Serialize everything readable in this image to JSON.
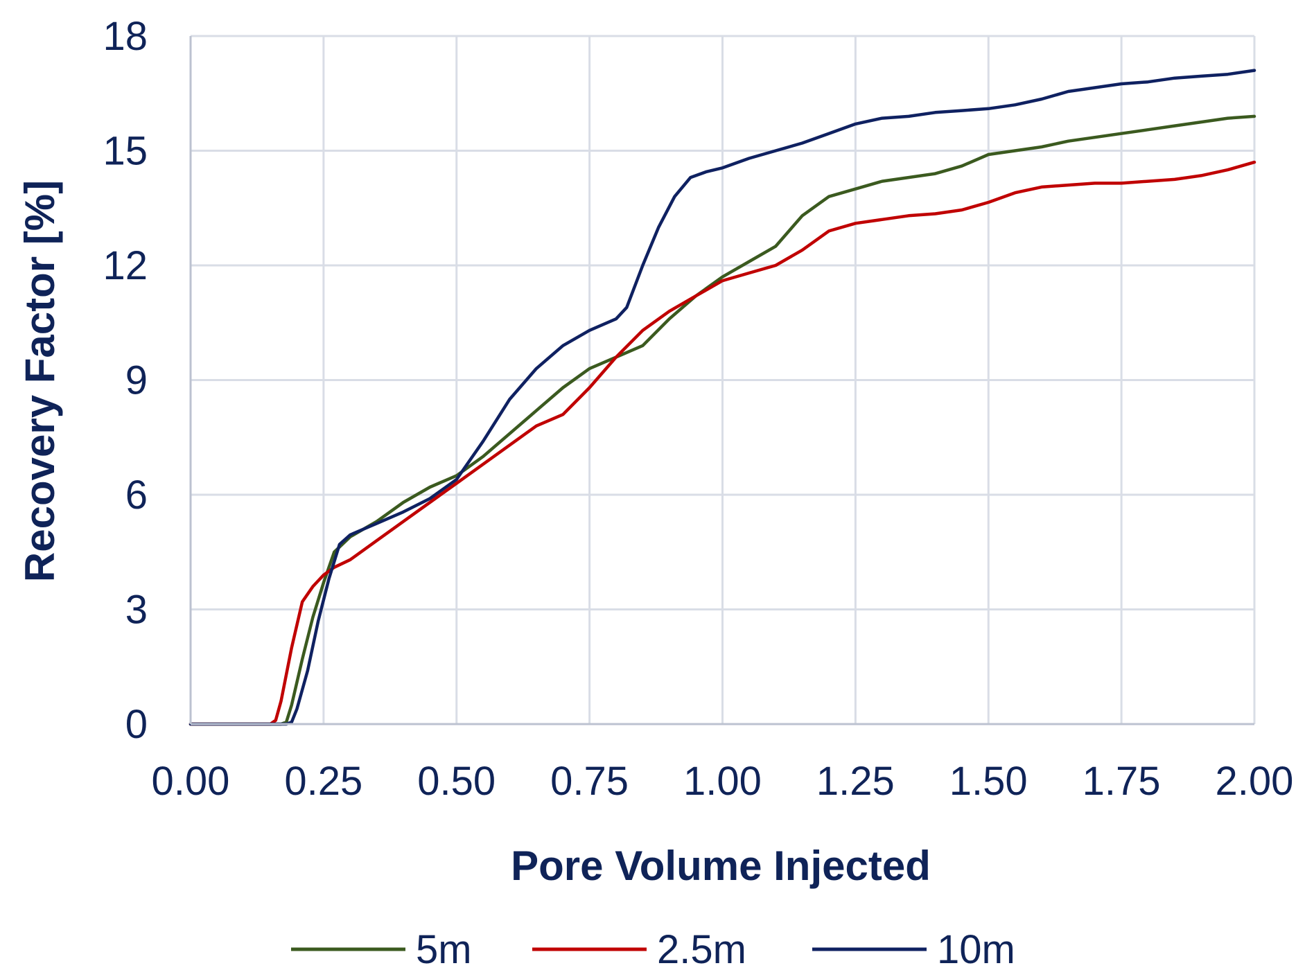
{
  "chart_data": {
    "type": "line",
    "title": "",
    "xlabel": "Pore Volume Injected",
    "ylabel": "Recovery Factor [%]",
    "xlim": [
      0,
      2
    ],
    "ylim": [
      0,
      18
    ],
    "x_ticks": [
      0,
      0.25,
      0.5,
      0.75,
      1.0,
      1.25,
      1.5,
      1.75,
      2.0
    ],
    "x_tick_labels": [
      "0.00",
      "0.25",
      "0.50",
      "0.75",
      "1.00",
      "1.25",
      "1.50",
      "1.75",
      "2.00"
    ],
    "y_ticks": [
      0,
      3,
      6,
      9,
      12,
      15,
      18
    ],
    "y_tick_labels": [
      "0",
      "3",
      "6",
      "9",
      "12",
      "15",
      "18"
    ],
    "grid": true,
    "legend_position": "bottom",
    "series": [
      {
        "name": "5m",
        "color": "#3b5a1f",
        "x": [
          0,
          0.17,
          0.18,
          0.19,
          0.21,
          0.23,
          0.25,
          0.27,
          0.3,
          0.35,
          0.4,
          0.45,
          0.5,
          0.55,
          0.6,
          0.65,
          0.7,
          0.75,
          0.8,
          0.85,
          0.9,
          0.95,
          1.0,
          1.05,
          1.1,
          1.15,
          1.2,
          1.25,
          1.3,
          1.35,
          1.4,
          1.45,
          1.5,
          1.55,
          1.6,
          1.65,
          1.7,
          1.75,
          1.8,
          1.85,
          1.9,
          1.95,
          2.0
        ],
        "y": [
          0,
          0,
          0.05,
          0.5,
          1.7,
          2.8,
          3.7,
          4.5,
          4.9,
          5.3,
          5.8,
          6.2,
          6.5,
          7.0,
          7.6,
          8.2,
          8.8,
          9.3,
          9.6,
          9.9,
          10.6,
          11.2,
          11.7,
          12.1,
          12.5,
          13.3,
          13.8,
          14.0,
          14.2,
          14.3,
          14.4,
          14.6,
          14.9,
          15.0,
          15.1,
          15.25,
          15.35,
          15.45,
          15.55,
          15.65,
          15.75,
          15.85,
          15.9
        ]
      },
      {
        "name": "2.5m",
        "color": "#c00000",
        "x": [
          0,
          0.15,
          0.16,
          0.17,
          0.19,
          0.21,
          0.23,
          0.25,
          0.27,
          0.3,
          0.35,
          0.4,
          0.45,
          0.5,
          0.55,
          0.6,
          0.65,
          0.7,
          0.75,
          0.8,
          0.85,
          0.9,
          0.95,
          1.0,
          1.05,
          1.1,
          1.15,
          1.2,
          1.25,
          1.3,
          1.35,
          1.4,
          1.45,
          1.5,
          1.55,
          1.6,
          1.65,
          1.7,
          1.75,
          1.8,
          1.85,
          1.9,
          1.95,
          2.0
        ],
        "y": [
          0,
          0,
          0.1,
          0.6,
          2.0,
          3.2,
          3.6,
          3.9,
          4.1,
          4.3,
          4.8,
          5.3,
          5.8,
          6.3,
          6.8,
          7.3,
          7.8,
          8.1,
          8.8,
          9.6,
          10.3,
          10.8,
          11.2,
          11.6,
          11.8,
          12.0,
          12.4,
          12.9,
          13.1,
          13.2,
          13.3,
          13.35,
          13.45,
          13.65,
          13.9,
          14.05,
          14.1,
          14.15,
          14.15,
          14.2,
          14.25,
          14.35,
          14.5,
          14.7
        ]
      },
      {
        "name": "10m",
        "color": "#0f2161",
        "x": [
          0,
          0.18,
          0.19,
          0.2,
          0.22,
          0.24,
          0.26,
          0.28,
          0.3,
          0.35,
          0.4,
          0.45,
          0.5,
          0.55,
          0.6,
          0.65,
          0.7,
          0.75,
          0.8,
          0.82,
          0.85,
          0.88,
          0.91,
          0.94,
          0.97,
          1.0,
          1.05,
          1.1,
          1.15,
          1.2,
          1.25,
          1.3,
          1.35,
          1.4,
          1.45,
          1.5,
          1.55,
          1.6,
          1.65,
          1.7,
          1.75,
          1.8,
          1.85,
          1.9,
          1.95,
          2.0
        ],
        "y": [
          0,
          0,
          0.05,
          0.4,
          1.4,
          2.7,
          3.8,
          4.7,
          4.95,
          5.25,
          5.55,
          5.9,
          6.4,
          7.4,
          8.5,
          9.3,
          9.9,
          10.3,
          10.6,
          10.9,
          12.0,
          13.0,
          13.8,
          14.3,
          14.45,
          14.55,
          14.8,
          15.0,
          15.2,
          15.45,
          15.7,
          15.85,
          15.9,
          16.0,
          16.05,
          16.1,
          16.2,
          16.35,
          16.55,
          16.65,
          16.75,
          16.8,
          16.9,
          16.95,
          17.0,
          17.1
        ]
      }
    ]
  }
}
